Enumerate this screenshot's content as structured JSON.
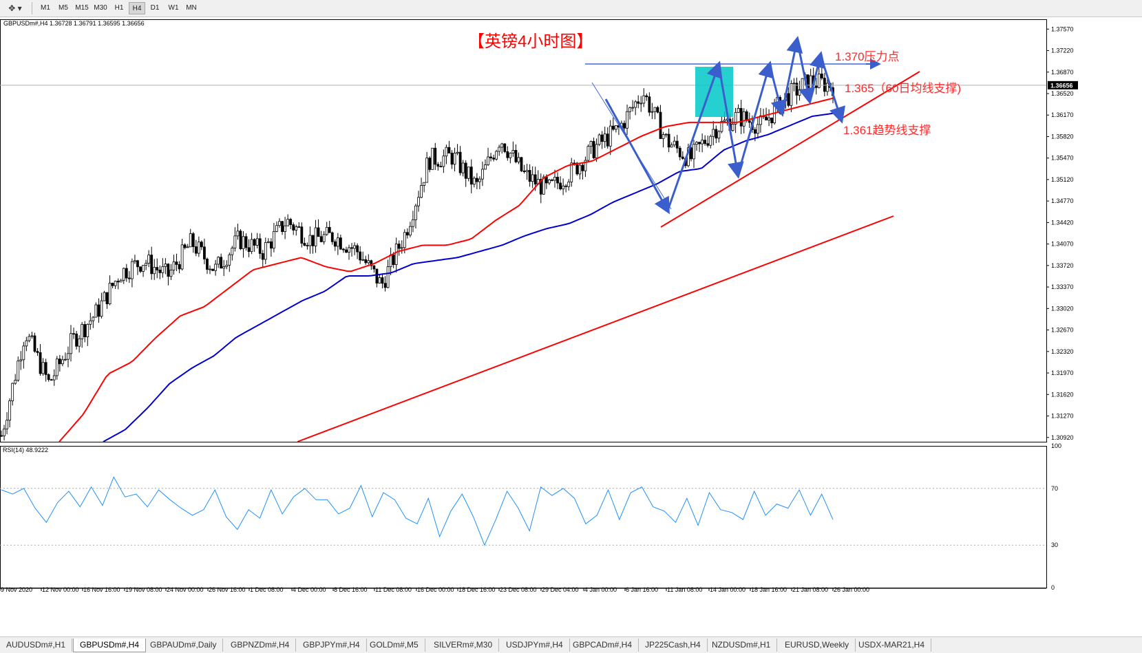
{
  "toolbar": {
    "tool_icon": "cursor-tool-icon",
    "timeframes": [
      "M1",
      "M5",
      "M15",
      "M30",
      "H1",
      "H4",
      "D1",
      "W1",
      "MN"
    ],
    "active": "H4"
  },
  "chart_header": "GBPUSDm#,H4  1.36728 1.36791 1.36595 1.36656",
  "chart_title": "【英镑4小时图】",
  "annotations": {
    "resistance": "1.370压力点",
    "ma_support": "1.365（60日均线支撑)",
    "trend_support": "1.361趋势线支撑"
  },
  "colors": {
    "title": "#ff0000",
    "annotation": "#ff2a2a",
    "trendline": "#ff0000",
    "ma_red": "#ff0000",
    "ma_blue": "#0000d0",
    "arrows": "#3a5fcd",
    "box": "#00c8c8",
    "rsi": "#1e90ff"
  },
  "current_price_label": "1.36656",
  "rsi_label": "RSI(14) 48.9222",
  "chart_data": {
    "type": "line",
    "symbol": "GBPUSDm#",
    "timeframe": "H4",
    "ohlc_last": {
      "open": 1.36728,
      "high": 1.36791,
      "low": 1.36595,
      "close": 1.36656
    },
    "x_ticks": [
      "9 Nov 2020",
      "12 Nov 00:00",
      "16 Nov 16:00",
      "19 Nov 08:00",
      "24 Nov 00:00",
      "26 Nov 16:00",
      "1 Dec 08:00",
      "4 Dec 00:00",
      "8 Dec 16:00",
      "11 Dec 08:00",
      "16 Dec 00:00",
      "18 Dec 16:00",
      "23 Dec 08:00",
      "29 Dec 04:00",
      "4 Jan 00:00",
      "6 Jan 16:00",
      "11 Jan 08:00",
      "14 Jan 00:00",
      "18 Jan 16:00",
      "21 Jan 08:00",
      "26 Jan 00:00"
    ],
    "y_ticks": [
      "1.37570",
      "1.37220",
      "1.36870",
      "1.36520",
      "1.36170",
      "1.35820",
      "1.35470",
      "1.35120",
      "1.34770",
      "1.34420",
      "1.34070",
      "1.33720",
      "1.33370",
      "1.33020",
      "1.32670",
      "1.32320",
      "1.31970",
      "1.31620",
      "1.31270",
      "1.30920"
    ],
    "ylim": [
      1.3085,
      1.3773
    ],
    "rsi_ticks": [
      "100",
      "70",
      "30",
      "0"
    ],
    "rsi_levels": [
      70,
      30
    ],
    "series": [
      {
        "values": [
          1.3095,
          1.3265,
          1.318,
          1.325,
          1.3295,
          1.336,
          1.338,
          1.3355,
          1.341,
          1.3365,
          1.3415,
          1.3395,
          1.3445,
          1.3415,
          1.342,
          1.3395,
          1.334,
          1.3425,
          1.3545,
          1.355,
          1.35,
          1.358,
          1.352,
          1.3495,
          1.3525,
          1.3565,
          1.3595,
          1.3655,
          1.3575,
          1.3545,
          1.3595,
          1.3615,
          1.36,
          1.3645,
          1.3672,
          1.36656
        ]
      },
      {
        "values": [
          1.3085,
          1.313,
          1.3195,
          1.3215,
          1.3255,
          1.329,
          1.3305,
          1.3335,
          1.3365,
          1.3375,
          1.3385,
          1.337,
          1.3362,
          1.3375,
          1.3395,
          1.3405,
          1.3405,
          1.3415,
          1.3445,
          1.347,
          1.3515,
          1.3535,
          1.3542,
          1.3562,
          1.3582,
          1.3598,
          1.3605,
          1.3605,
          1.3605,
          1.3615,
          1.3625,
          1.3635,
          1.3645
        ]
      },
      {
        "values": [
          1.3085,
          1.3105,
          1.314,
          1.318,
          1.3205,
          1.3225,
          1.3255,
          1.3275,
          1.3295,
          1.3315,
          1.333,
          1.3355,
          1.3355,
          1.336,
          1.3375,
          1.338,
          1.3385,
          1.3395,
          1.3405,
          1.342,
          1.3432,
          1.344,
          1.3455,
          1.3475,
          1.349,
          1.3505,
          1.3525,
          1.353,
          1.356,
          1.3575,
          1.3585,
          1.36,
          1.3615,
          1.362
        ]
      },
      {
        "values": [
          69,
          66,
          70,
          56,
          46,
          60,
          68,
          57,
          71,
          58,
          78,
          64,
          66,
          57,
          69,
          62,
          56,
          51,
          55,
          69,
          50,
          41,
          55,
          49,
          69,
          52,
          64,
          70,
          62,
          62,
          52,
          56,
          72,
          50,
          67,
          62,
          49,
          45,
          63,
          36,
          54,
          66,
          50,
          30,
          48,
          68,
          56,
          40,
          71,
          65,
          70,
          63,
          45,
          51,
          69,
          48,
          67,
          71,
          57,
          54,
          46,
          63,
          44,
          67,
          55,
          53,
          48,
          68,
          51,
          59,
          56,
          69,
          51,
          66,
          48
        ]
      }
    ]
  },
  "tabs": [
    "AUDUSDm#,H1",
    "GBPUSDm#,H4",
    "GBPAUDm#,Daily",
    "GBPNZDm#,H4",
    "GBPJPYm#,H4",
    "GOLDm#,M5",
    "SILVERm#,M30",
    "USDJPYm#,H4",
    "GBPCADm#,H4",
    "JP225Cash,H4",
    "NZDUSDm#,H1",
    "EURUSD,Weekly",
    "USDX-MAR21,H4"
  ],
  "active_tab": "GBPUSDm#,H4"
}
